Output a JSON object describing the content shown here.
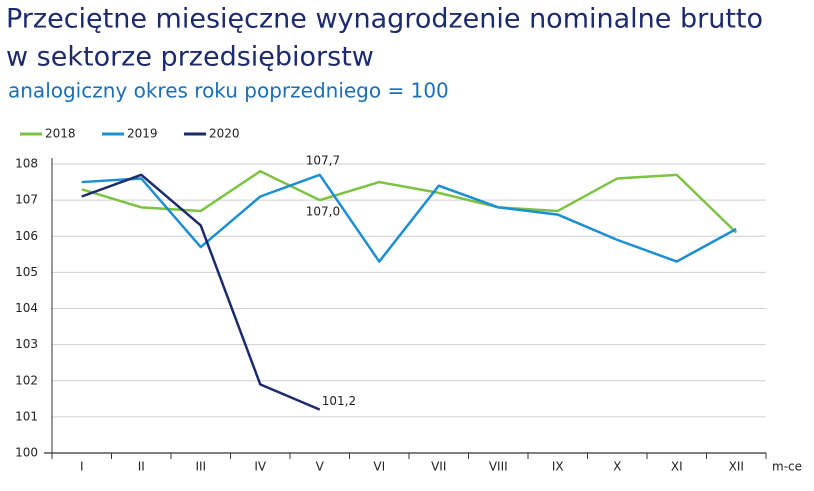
{
  "chart_data": {
    "type": "line",
    "title": "Przeciętne miesięczne wynagrodzenie nominalne brutto w sektorze przedsiębiorstw",
    "title_lines": [
      "Przeciętne miesięczne wynagrodzenie nominalne brutto",
      "w sektorze przedsiębiorstw"
    ],
    "subtitle": "analogiczny okres roku poprzedniego = 100",
    "x_label": "m-ce",
    "categories": [
      "I",
      "II",
      "III",
      "IV",
      "V",
      "VI",
      "VII",
      "VIII",
      "IX",
      "X",
      "XI",
      "XII"
    ],
    "series": [
      {
        "name": "2018",
        "color": "#7dc242",
        "values": [
          107.3,
          106.8,
          106.7,
          107.8,
          107.0,
          107.5,
          107.2,
          106.8,
          106.7,
          107.6,
          107.7,
          106.1
        ],
        "value_labels": [
          null,
          null,
          null,
          null,
          "107,0",
          null,
          null,
          null,
          null,
          null,
          null,
          null
        ]
      },
      {
        "name": "2019",
        "color": "#1b8fd2",
        "values": [
          107.5,
          107.6,
          105.7,
          107.1,
          107.7,
          105.3,
          107.4,
          106.8,
          106.6,
          105.9,
          105.3,
          106.2
        ],
        "value_labels": [
          null,
          null,
          null,
          null,
          "107,7",
          null,
          null,
          null,
          null,
          null,
          null,
          null
        ]
      },
      {
        "name": "2020",
        "color": "#1c2a6e",
        "values": [
          107.1,
          107.7,
          106.3,
          101.9,
          101.2,
          null,
          null,
          null,
          null,
          null,
          null,
          null
        ],
        "value_labels": [
          null,
          null,
          null,
          null,
          "101,2",
          null,
          null,
          null,
          null,
          null,
          null,
          null
        ]
      }
    ],
    "ylim": [
      100,
      108
    ],
    "yticks": [
      100,
      101,
      102,
      103,
      104,
      105,
      106,
      107,
      108
    ],
    "grid": true,
    "legend": "top-left"
  }
}
